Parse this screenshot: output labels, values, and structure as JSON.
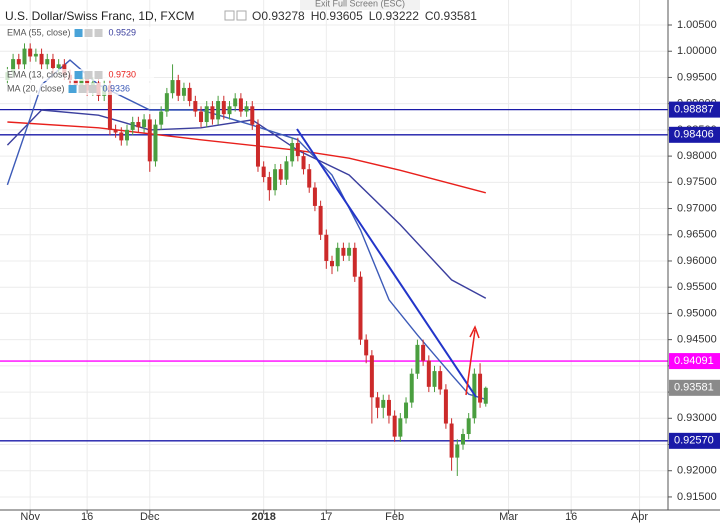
{
  "chart_data": {
    "type": "candlestick",
    "title": "U.S. Dollar/Swiss Franc, 1D, FXCM",
    "screen_hint": "Exit Full Screen (ESC)",
    "ohlc_labels": [
      "O",
      "H",
      "L",
      "C"
    ],
    "up_color": "#4a9e3f",
    "down_color": "#cc2a2a",
    "grid": true,
    "xlim": [
      -1.3,
      116
    ],
    "xticks": [
      {
        "value": 4,
        "label": "Nov"
      },
      {
        "value": 14,
        "label": "16"
      },
      {
        "value": 25,
        "label": "Dec"
      },
      {
        "value": 45,
        "label": "2018"
      },
      {
        "value": 56,
        "label": "17"
      },
      {
        "value": 68,
        "label": "Feb"
      },
      {
        "value": 88,
        "label": "Mar"
      },
      {
        "value": 99,
        "label": "16"
      },
      {
        "value": 111,
        "label": "Apr"
      }
    ],
    "ylim": [
      0.91251,
      1.00977
    ],
    "yticks": [
      {
        "value": 1.005,
        "label": "1.00500"
      },
      {
        "value": 1.0,
        "label": "1.00000"
      },
      {
        "value": 0.995,
        "label": "0.99500"
      },
      {
        "value": 0.99,
        "label": "0.99000"
      },
      {
        "value": 0.985,
        "label": "0.98500"
      },
      {
        "value": 0.98,
        "label": "0.98000"
      },
      {
        "value": 0.975,
        "label": "0.97500"
      },
      {
        "value": 0.97,
        "label": "0.97000"
      },
      {
        "value": 0.965,
        "label": "0.96500"
      },
      {
        "value": 0.96,
        "label": "0.96000"
      },
      {
        "value": 0.955,
        "label": "0.95500"
      },
      {
        "value": 0.95,
        "label": "0.95000"
      },
      {
        "value": 0.945,
        "label": "0.94500"
      },
      {
        "value": 0.94,
        "label": "0.94000"
      },
      {
        "value": 0.935,
        "label": "0.93500"
      },
      {
        "value": 0.93,
        "label": "0.93000"
      },
      {
        "value": 0.925,
        "label": "0.92500"
      },
      {
        "value": 0.92,
        "label": "0.92000"
      },
      {
        "value": 0.915,
        "label": "0.91500"
      }
    ],
    "open": [
      0.9945,
      0.996,
      0.9985,
      0.9975,
      1.0005,
      0.999,
      0.9995,
      0.9975,
      0.9985,
      0.9968,
      0.9975,
      0.9955,
      0.9945,
      0.9935,
      0.995,
      0.9925,
      0.994,
      0.9915,
      0.9935,
      0.985,
      0.9845,
      0.983,
      0.985,
      0.9865,
      0.9855,
      0.987,
      0.979,
      0.986,
      0.9885,
      0.992,
      0.9945,
      0.9915,
      0.993,
      0.9905,
      0.9885,
      0.9865,
      0.9895,
      0.987,
      0.9905,
      0.988,
      0.9895,
      0.991,
      0.9885,
      0.9895,
      0.986,
      0.978,
      0.976,
      0.9735,
      0.9775,
      0.9755,
      0.979,
      0.9825,
      0.98,
      0.9775,
      0.974,
      0.9705,
      0.965,
      0.96,
      0.959,
      0.9625,
      0.961,
      0.9625,
      0.957,
      0.945,
      0.942,
      0.934,
      0.932,
      0.9335,
      0.9305,
      0.9265,
      0.93,
      0.933,
      0.9385,
      0.944,
      0.941,
      0.936,
      0.939,
      0.9355,
      0.929,
      0.9225,
      0.925,
      0.927,
      0.93,
      0.9385,
      0.93278
    ],
    "high": [
      0.997,
      0.9995,
      0.9995,
      1.0015,
      1.0015,
      1.0005,
      1.0005,
      0.9995,
      0.9995,
      0.9985,
      0.9985,
      0.9965,
      0.9955,
      0.996,
      0.996,
      0.995,
      0.995,
      0.9945,
      0.9945,
      0.986,
      0.9855,
      0.986,
      0.9875,
      0.9875,
      0.988,
      0.988,
      0.987,
      0.9895,
      0.993,
      0.9975,
      0.9955,
      0.994,
      0.994,
      0.9915,
      0.9895,
      0.9905,
      0.9905,
      0.9915,
      0.9915,
      0.9905,
      0.992,
      0.992,
      0.9905,
      0.9905,
      0.987,
      0.979,
      0.977,
      0.9785,
      0.9785,
      0.98,
      0.9835,
      0.9835,
      0.981,
      0.9785,
      0.975,
      0.9715,
      0.966,
      0.961,
      0.9635,
      0.9635,
      0.9635,
      0.9635,
      0.958,
      0.946,
      0.943,
      0.935,
      0.9345,
      0.9345,
      0.9315,
      0.931,
      0.934,
      0.9395,
      0.945,
      0.945,
      0.942,
      0.94,
      0.94,
      0.9365,
      0.93,
      0.926,
      0.928,
      0.931,
      0.9395,
      0.9405,
      0.93605
    ],
    "low": [
      0.9935,
      0.995,
      0.9965,
      0.9965,
      0.998,
      0.998,
      0.9965,
      0.9965,
      0.9958,
      0.9958,
      0.9945,
      0.9935,
      0.9925,
      0.9925,
      0.9915,
      0.9915,
      0.9905,
      0.9905,
      0.984,
      0.9835,
      0.982,
      0.982,
      0.984,
      0.9845,
      0.9845,
      0.977,
      0.978,
      0.985,
      0.9875,
      0.991,
      0.9905,
      0.9905,
      0.9895,
      0.9875,
      0.9855,
      0.9855,
      0.986,
      0.986,
      0.987,
      0.987,
      0.9885,
      0.9875,
      0.9875,
      0.985,
      0.977,
      0.975,
      0.9715,
      0.9725,
      0.9745,
      0.9745,
      0.978,
      0.979,
      0.9765,
      0.973,
      0.9695,
      0.964,
      0.9585,
      0.9575,
      0.958,
      0.96,
      0.96,
      0.956,
      0.944,
      0.9405,
      0.929,
      0.93,
      0.93,
      0.929,
      0.9255,
      0.9255,
      0.929,
      0.932,
      0.9375,
      0.94,
      0.935,
      0.935,
      0.9345,
      0.928,
      0.92,
      0.919,
      0.924,
      0.926,
      0.929,
      0.932,
      0.93222
    ],
    "close": [
      0.996,
      0.9985,
      0.9975,
      1.0005,
      0.999,
      0.9995,
      0.9975,
      0.9985,
      0.9968,
      0.9975,
      0.9955,
      0.9945,
      0.9935,
      0.995,
      0.9925,
      0.994,
      0.9915,
      0.9935,
      0.985,
      0.9845,
      0.983,
      0.985,
      0.9865,
      0.9855,
      0.987,
      0.979,
      0.986,
      0.9885,
      0.992,
      0.9945,
      0.9915,
      0.993,
      0.9905,
      0.9885,
      0.9865,
      0.9895,
      0.987,
      0.9905,
      0.988,
      0.9895,
      0.991,
      0.9885,
      0.9895,
      0.986,
      0.978,
      0.976,
      0.9735,
      0.9775,
      0.9755,
      0.979,
      0.9825,
      0.98,
      0.9775,
      0.974,
      0.9705,
      0.965,
      0.96,
      0.959,
      0.9625,
      0.961,
      0.9625,
      0.957,
      0.945,
      0.942,
      0.934,
      0.932,
      0.9335,
      0.9305,
      0.9265,
      0.93,
      0.933,
      0.9385,
      0.944,
      0.941,
      0.936,
      0.939,
      0.9355,
      0.929,
      0.9225,
      0.925,
      0.927,
      0.93,
      0.9385,
      0.933,
      0.93581
    ],
    "series": [
      {
        "name": "EMA (55, close)",
        "color": "#3b3f9e",
        "legend_value": 0.9529,
        "x": [
          0,
          6,
          16,
          25,
          34,
          43,
          51,
          60,
          69,
          78,
          84
        ],
        "values": [
          0.9821,
          0.9888,
          0.9878,
          0.985,
          0.9854,
          0.9869,
          0.9811,
          0.9764,
          0.9669,
          0.9564,
          0.9529
        ]
      },
      {
        "name": "EMA (13, close)",
        "color": "#e8201c",
        "legend_value": {
          "value": 0.973,
          "label": "0.9730"
        },
        "x": [
          0,
          16,
          34,
          51,
          60,
          69,
          84
        ],
        "values": [
          0.9865,
          0.9854,
          0.9831,
          0.9811,
          0.9796,
          0.9773,
          0.973
        ]
      },
      {
        "name": "MA (20, close)",
        "color": "#3d5bb8",
        "legend_value": 0.9336,
        "x": [
          0,
          6,
          11,
          16,
          25,
          34,
          43,
          51,
          57,
          62,
          67,
          72,
          78,
          81,
          84
        ],
        "values": [
          0.9745,
          0.9936,
          0.9983,
          0.9936,
          0.9888,
          0.9888,
          0.9859,
          0.9831,
          0.9764,
          0.9659,
          0.9526,
          0.9459,
          0.9383,
          0.9346,
          0.9336
        ]
      }
    ],
    "levels": [
      {
        "value": 0.98887,
        "color": "#1a1aa8"
      },
      {
        "value": 0.98406,
        "color": "#1a1aa8"
      },
      {
        "value": 0.94091,
        "color": "#ff00ff"
      },
      {
        "value": 0.9257,
        "label": "0.92570",
        "color": "#1a1aa8"
      }
    ],
    "last_price_color": "#8a8a8a"
  }
}
